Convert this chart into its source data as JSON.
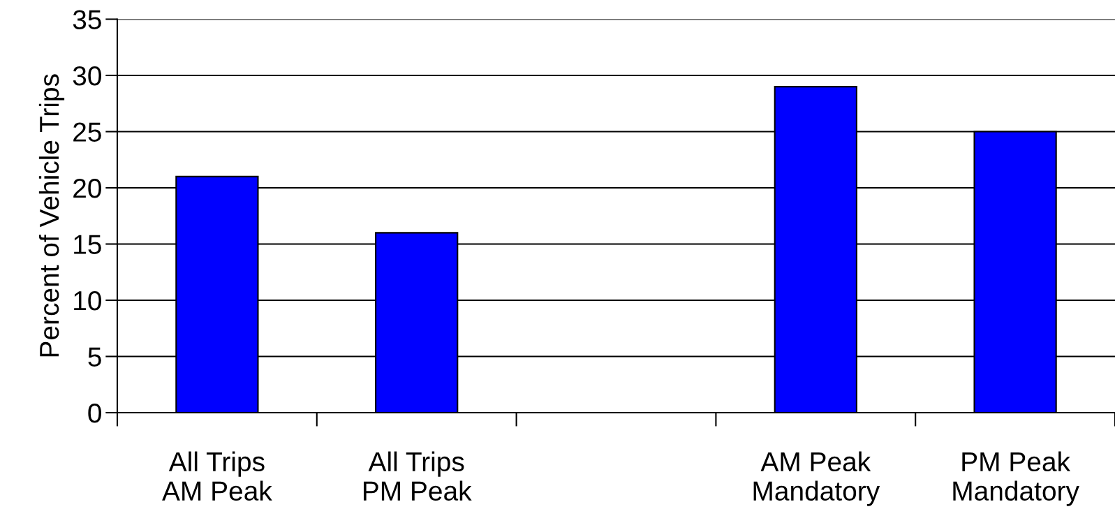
{
  "chart_data": {
    "type": "bar",
    "ylabel": "Percent of Vehicle Trips",
    "categories": [
      "All Trips\nAM Peak",
      "All Trips\nPM Peak",
      null,
      "AM Peak\nMandatory",
      "PM Peak\nMandatory"
    ],
    "values": [
      21,
      16,
      null,
      29,
      25
    ],
    "color": "#0000ff",
    "ylim": [
      0,
      35
    ],
    "yticks": [
      0,
      5,
      10,
      15,
      20,
      25,
      30,
      35
    ],
    "grid": "y",
    "legend": false
  }
}
